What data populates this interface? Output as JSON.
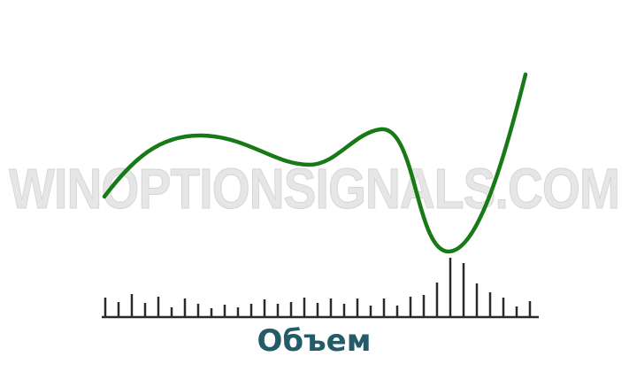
{
  "watermark": "WINOPTIONSIGNALS.COM",
  "volume_label": "Объем",
  "colors": {
    "price_curve": "#177a17",
    "levels": "#1a1a1a",
    "volume_bars": "#2a2a2a",
    "label": "#235b69",
    "watermark": "#e6e6e6"
  },
  "volume_bars_relative": [
    22,
    17,
    26,
    16,
    23,
    11,
    21,
    15,
    10,
    14,
    11,
    15,
    20,
    15,
    17,
    22,
    16,
    21,
    15,
    21,
    13,
    21,
    13,
    23,
    25,
    39,
    67,
    61,
    38,
    28,
    22,
    12,
    18
  ]
}
